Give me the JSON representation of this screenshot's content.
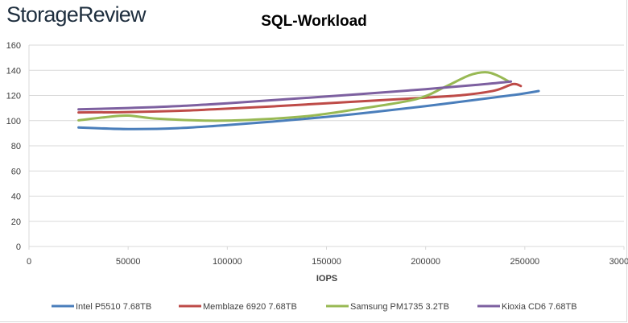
{
  "brand": {
    "text_part1": "Storage",
    "text_part2": "Review"
  },
  "chart_data": {
    "type": "line",
    "title": "SQL-Workload",
    "xlabel": "IOPS",
    "ylabel": "",
    "xlim": [
      0,
      300000
    ],
    "ylim": [
      0,
      160
    ],
    "x_ticks": [
      0,
      50000,
      100000,
      150000,
      200000,
      250000,
      300000
    ],
    "x_tick_labels": [
      "0",
      "50000",
      "100000",
      "150000",
      "200000",
      "250000",
      "300000"
    ],
    "y_ticks": [
      0,
      20,
      40,
      60,
      80,
      100,
      120,
      140,
      160
    ],
    "y_tick_labels": [
      "0",
      "20",
      "40",
      "60",
      "80",
      "100",
      "120",
      "140",
      "160"
    ],
    "grid": "horizontal",
    "legend_position": "bottom",
    "series": [
      {
        "name": "Intel P5510 7.68TB",
        "color": "#4a7ebb",
        "points": [
          [
            25000,
            94.5
          ],
          [
            50000,
            93.3
          ],
          [
            75000,
            94
          ],
          [
            100000,
            96.5
          ],
          [
            125000,
            99.5
          ],
          [
            150000,
            103
          ],
          [
            175000,
            107
          ],
          [
            200000,
            111.5
          ],
          [
            225000,
            116.5
          ],
          [
            245000,
            120.5
          ],
          [
            257000,
            123.5
          ]
        ]
      },
      {
        "name": "Memblaze 6920 7.68TB",
        "color": "#be4b48",
        "points": [
          [
            25000,
            106.5
          ],
          [
            50000,
            106.8
          ],
          [
            75000,
            107.8
          ],
          [
            100000,
            109.5
          ],
          [
            125000,
            111.5
          ],
          [
            150000,
            113.8
          ],
          [
            175000,
            116
          ],
          [
            200000,
            118.3
          ],
          [
            220000,
            120.5
          ],
          [
            235000,
            124
          ],
          [
            244000,
            129
          ],
          [
            248000,
            127.5
          ]
        ]
      },
      {
        "name": "Samsung PM1735 3.2TB",
        "color": "#98b954",
        "points": [
          [
            25000,
            100.2
          ],
          [
            40000,
            103
          ],
          [
            50000,
            104
          ],
          [
            65000,
            101.5
          ],
          [
            90000,
            100
          ],
          [
            110000,
            100.5
          ],
          [
            140000,
            103.5
          ],
          [
            165000,
            109
          ],
          [
            195000,
            117
          ],
          [
            210000,
            127
          ],
          [
            222000,
            136
          ],
          [
            230000,
            138.5
          ],
          [
            236000,
            136
          ],
          [
            242000,
            131
          ]
        ]
      },
      {
        "name": "Kioxia CD6 7.68TB",
        "color": "#7d60a0",
        "points": [
          [
            25000,
            109
          ],
          [
            50000,
            110
          ],
          [
            75000,
            111.5
          ],
          [
            100000,
            113.8
          ],
          [
            125000,
            116.5
          ],
          [
            150000,
            119.2
          ],
          [
            175000,
            122
          ],
          [
            200000,
            125
          ],
          [
            225000,
            128.3
          ],
          [
            243000,
            131
          ]
        ]
      }
    ]
  }
}
